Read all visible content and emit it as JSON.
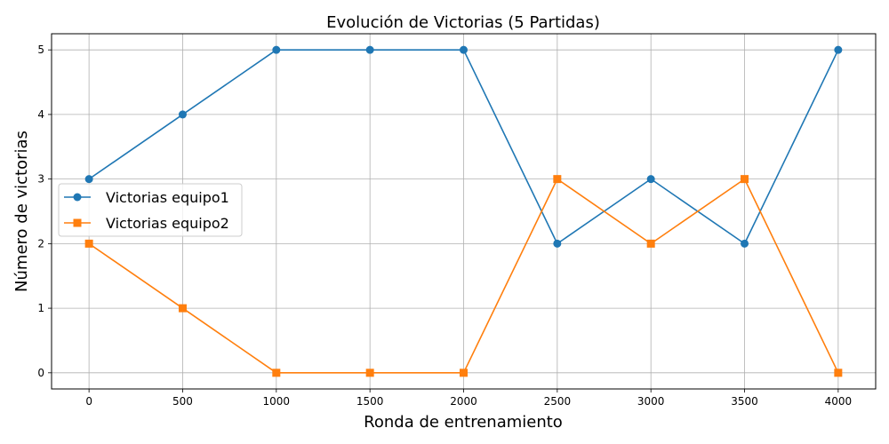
{
  "chart_data": {
    "type": "line",
    "title": "Evolución de Victorias (5 Partidas)",
    "xlabel": "Ronda de entrenamiento",
    "ylabel": "Número de victorias",
    "x": [
      0,
      500,
      1000,
      1500,
      2000,
      2500,
      3000,
      3500,
      4000
    ],
    "xticks": [
      0,
      500,
      1000,
      1500,
      2000,
      2500,
      3000,
      3500,
      4000
    ],
    "yticks": [
      0,
      1,
      2,
      3,
      4,
      5
    ],
    "xlim": [
      -200,
      4200
    ],
    "ylim": [
      -0.25,
      5.25
    ],
    "grid": true,
    "legend_position": "center-left",
    "series": [
      {
        "name": "Victorias equipo1",
        "values": [
          3,
          4,
          5,
          5,
          5,
          2,
          3,
          2,
          5
        ],
        "color": "#1f77b4",
        "marker": "circle"
      },
      {
        "name": "Victorias equipo2",
        "values": [
          2,
          1,
          0,
          0,
          0,
          3,
          2,
          3,
          0
        ],
        "color": "#ff7f0e",
        "marker": "square"
      }
    ]
  }
}
